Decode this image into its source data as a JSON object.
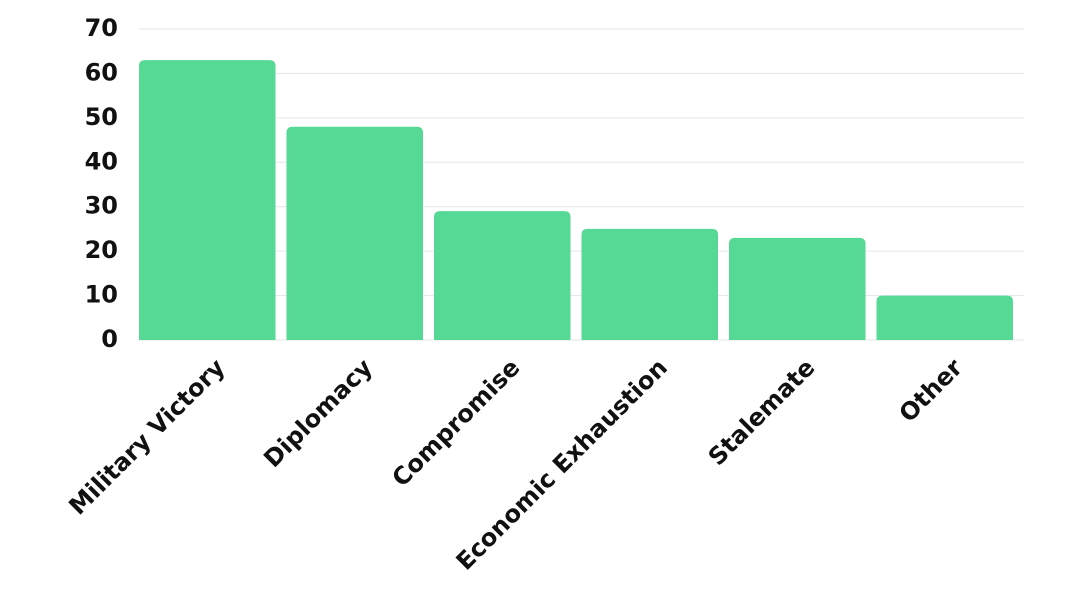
{
  "chart_data": {
    "type": "bar",
    "categories": [
      "Military Victory",
      "Diplomacy",
      "Compromise",
      "Economic Exhaustion",
      "Stalemate",
      "Other"
    ],
    "values": [
      63,
      48,
      29,
      25,
      23,
      10
    ],
    "color": "#55d995",
    "ylim": [
      0,
      70
    ],
    "yticks": [
      0,
      10,
      20,
      30,
      40,
      50,
      60,
      70
    ],
    "grid": true
  }
}
